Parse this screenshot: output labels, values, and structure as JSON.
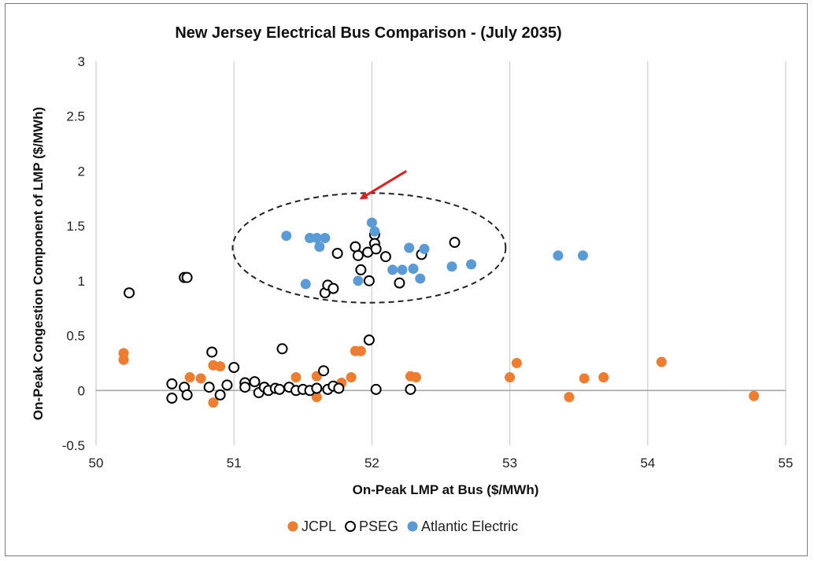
{
  "chart_data": {
    "type": "scatter",
    "title": "New Jersey  Electrical  Bus  Comparison  -   (July  2035)",
    "xlabel": "On-Peak LMP at Bus ($/MWh)",
    "ylabel": "On-Peak Congestion Component of LMP ($/MWh)",
    "xlim": [
      50,
      55
    ],
    "ylim": [
      -0.5,
      3
    ],
    "xticks": [
      "50",
      "51",
      "52",
      "53",
      "54",
      "55"
    ],
    "yticks": [
      "-0.5",
      "0",
      "0.5",
      "1",
      "1.5",
      "2",
      "2.5",
      "3"
    ],
    "grid": "vertical",
    "legend_position": "bottom",
    "colors": {
      "JCPL": "#ED7D31",
      "PSEG": "#000000",
      "Atlantic Electric": "#5B9BD5",
      "arrow": "#E02020",
      "ellipse": "#222222"
    },
    "series": [
      {
        "name": "JCPL",
        "marker": "filled-circle",
        "points": [
          [
            50.2,
            0.34
          ],
          [
            50.2,
            0.28
          ],
          [
            50.68,
            0.12
          ],
          [
            50.76,
            0.11
          ],
          [
            50.85,
            0.23
          ],
          [
            50.9,
            0.22
          ],
          [
            50.85,
            -0.11
          ],
          [
            51.45,
            0.12
          ],
          [
            51.6,
            0.13
          ],
          [
            51.6,
            -0.06
          ],
          [
            51.78,
            0.07
          ],
          [
            51.85,
            0.12
          ],
          [
            51.88,
            0.36
          ],
          [
            51.92,
            0.36
          ],
          [
            52.28,
            0.13
          ],
          [
            52.32,
            0.12
          ],
          [
            53.0,
            0.12
          ],
          [
            53.05,
            0.25
          ],
          [
            53.43,
            -0.06
          ],
          [
            53.54,
            0.11
          ],
          [
            53.68,
            0.12
          ],
          [
            54.1,
            0.26
          ],
          [
            54.77,
            -0.05
          ]
        ]
      },
      {
        "name": "PSEG",
        "marker": "hollow-circle",
        "points": [
          [
            50.24,
            0.89
          ],
          [
            50.55,
            0.06
          ],
          [
            50.55,
            -0.07
          ],
          [
            50.64,
            0.03
          ],
          [
            50.66,
            -0.04
          ],
          [
            50.64,
            1.03
          ],
          [
            50.66,
            1.03
          ],
          [
            50.82,
            0.03
          ],
          [
            50.84,
            0.35
          ],
          [
            50.9,
            -0.04
          ],
          [
            50.95,
            0.05
          ],
          [
            51.0,
            0.21
          ],
          [
            51.08,
            0.07
          ],
          [
            51.08,
            0.03
          ],
          [
            51.15,
            0.08
          ],
          [
            51.18,
            -0.02
          ],
          [
            51.22,
            0.03
          ],
          [
            51.25,
            0.0
          ],
          [
            51.3,
            0.02
          ],
          [
            51.33,
            0.01
          ],
          [
            51.35,
            0.38
          ],
          [
            51.4,
            0.03
          ],
          [
            51.45,
            0.0
          ],
          [
            51.5,
            0.01
          ],
          [
            51.55,
            0.0
          ],
          [
            51.6,
            0.02
          ],
          [
            51.65,
            0.18
          ],
          [
            51.68,
            0.01
          ],
          [
            51.72,
            0.04
          ],
          [
            51.76,
            0.02
          ],
          [
            51.66,
            0.89
          ],
          [
            51.68,
            0.96
          ],
          [
            51.72,
            0.93
          ],
          [
            51.75,
            1.25
          ],
          [
            51.88,
            1.31
          ],
          [
            51.9,
            1.23
          ],
          [
            51.92,
            1.1
          ],
          [
            51.98,
            1.0
          ],
          [
            51.97,
            1.26
          ],
          [
            51.98,
            0.46
          ],
          [
            52.02,
            1.42
          ],
          [
            52.02,
            1.34
          ],
          [
            52.03,
            1.29
          ],
          [
            52.1,
            1.22
          ],
          [
            52.2,
            0.98
          ],
          [
            52.28,
            0.01
          ],
          [
            52.36,
            1.24
          ],
          [
            52.6,
            1.35
          ],
          [
            52.03,
            0.01
          ]
        ]
      },
      {
        "name": "Atlantic Electric",
        "marker": "filled-circle",
        "points": [
          [
            51.38,
            1.41
          ],
          [
            51.52,
            0.97
          ],
          [
            51.55,
            1.39
          ],
          [
            51.6,
            1.39
          ],
          [
            51.62,
            1.31
          ],
          [
            51.66,
            1.39
          ],
          [
            51.9,
            1.0
          ],
          [
            52.0,
            1.53
          ],
          [
            52.02,
            1.45
          ],
          [
            52.15,
            1.1
          ],
          [
            52.22,
            1.1
          ],
          [
            52.27,
            1.3
          ],
          [
            52.3,
            1.11
          ],
          [
            52.35,
            1.02
          ],
          [
            52.38,
            1.29
          ],
          [
            52.58,
            1.13
          ],
          [
            52.72,
            1.15
          ],
          [
            53.35,
            1.23
          ],
          [
            53.53,
            1.23
          ]
        ]
      }
    ],
    "annotations": [
      {
        "type": "dashed-ellipse",
        "center": [
          51.98,
          1.3
        ],
        "radius_x": 0.99,
        "radius_y": 0.5
      },
      {
        "type": "arrow",
        "from": [
          52.25,
          2.0
        ],
        "to": [
          51.92,
          1.75
        ]
      }
    ]
  }
}
